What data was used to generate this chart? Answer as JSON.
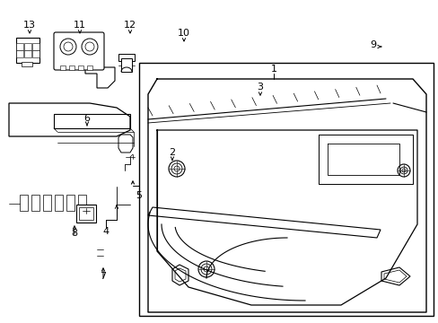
{
  "bg": "#ffffff",
  "lc": "#000000",
  "fig_w": 4.89,
  "fig_h": 3.6,
  "dpi": 100
}
